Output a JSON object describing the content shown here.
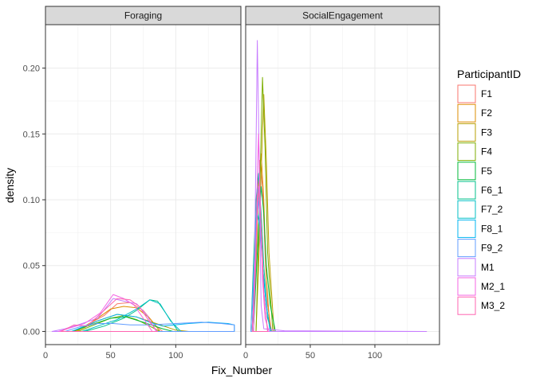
{
  "chart_data": {
    "type": "area",
    "xlabel": "Fix_Number",
    "ylabel": "density",
    "xlim": [
      0,
      150
    ],
    "ylim": [
      -0.01,
      0.233
    ],
    "x_ticks": [
      0,
      50,
      100
    ],
    "y_ticks": [
      0.0,
      0.05,
      0.1,
      0.15,
      0.2
    ],
    "y_tick_labels": [
      "0.00",
      "0.05",
      "0.10",
      "0.15",
      "0.20"
    ],
    "grid": true,
    "legend": {
      "title": "ParticipantID",
      "position": "right"
    },
    "panels": [
      {
        "name": "Foraging",
        "series": [
          {
            "name": "F1",
            "color": "#F8766D",
            "points": [
              [
                21,
                0
              ],
              [
                30,
                0.004
              ],
              [
                45,
                0.012
              ],
              [
                55,
                0.021
              ],
              [
                65,
                0.022
              ],
              [
                75,
                0.016
              ],
              [
                85,
                0.004
              ],
              [
                90,
                0
              ]
            ]
          },
          {
            "name": "F2",
            "color": "#DE8C00",
            "points": [
              [
                24,
                0
              ],
              [
                32,
                0.005
              ],
              [
                40,
                0.01
              ],
              [
                50,
                0.017
              ],
              [
                60,
                0.019
              ],
              [
                70,
                0.018
              ],
              [
                80,
                0.01
              ],
              [
                88,
                0
              ]
            ]
          },
          {
            "name": "F3",
            "color": "#B79F00",
            "points": [
              [
                22,
                0
              ],
              [
                30,
                0.003
              ],
              [
                40,
                0.008
              ],
              [
                55,
                0.013
              ],
              [
                70,
                0.011
              ],
              [
                85,
                0.006
              ],
              [
                100,
                0.001
              ],
              [
                110,
                0
              ]
            ]
          },
          {
            "name": "F4",
            "color": "#7CAE00",
            "points": [
              [
                25,
                0
              ],
              [
                35,
                0.004
              ],
              [
                50,
                0.01
              ],
              [
                60,
                0.012
              ],
              [
                70,
                0.009
              ],
              [
                80,
                0.004
              ],
              [
                88,
                0
              ]
            ]
          },
          {
            "name": "F5",
            "color": "#00BA38",
            "points": [
              [
                20,
                0
              ],
              [
                35,
                0.005
              ],
              [
                50,
                0.01
              ],
              [
                62,
                0.011
              ],
              [
                75,
                0.007
              ],
              [
                90,
                0.002
              ],
              [
                98,
                0
              ]
            ]
          },
          {
            "name": "F6_1",
            "color": "#00C08B",
            "points": [
              [
                30,
                0
              ],
              [
                45,
                0.004
              ],
              [
                60,
                0.01
              ],
              [
                70,
                0.016
              ],
              [
                80,
                0.024
              ],
              [
                86,
                0.023
              ],
              [
                95,
                0.01
              ],
              [
                102,
                0
              ]
            ]
          },
          {
            "name": "F7_2",
            "color": "#00BFC4",
            "points": [
              [
                28,
                0
              ],
              [
                40,
                0.004
              ],
              [
                55,
                0.009
              ],
              [
                70,
                0.017
              ],
              [
                80,
                0.024
              ],
              [
                88,
                0.021
              ],
              [
                96,
                0.008
              ],
              [
                104,
                0
              ]
            ]
          },
          {
            "name": "F8_1",
            "color": "#00B4F0",
            "points": [
              [
                20,
                0
              ],
              [
                40,
                0.008
              ],
              [
                55,
                0.013
              ],
              [
                70,
                0.011
              ],
              [
                80,
                0.007
              ],
              [
                90,
                0.004
              ],
              [
                110,
                0.006
              ],
              [
                125,
                0.007
              ],
              [
                140,
                0.006
              ],
              [
                145,
                0.005
              ]
            ]
          },
          {
            "name": "F9_2",
            "color": "#619CFF",
            "points": [
              [
                15,
                0
              ],
              [
                28,
                0.004
              ],
              [
                40,
                0.006
              ],
              [
                52,
                0.006
              ],
              [
                65,
                0.005
              ],
              [
                80,
                0.005
              ],
              [
                100,
                0.006
              ],
              [
                120,
                0.007
              ],
              [
                135,
                0.006
              ],
              [
                145,
                0.005
              ]
            ]
          },
          {
            "name": "M1",
            "color": "#C77CFF",
            "points": [
              [
                5,
                0
              ],
              [
                15,
                0.002
              ],
              [
                25,
                0.005
              ],
              [
                40,
                0.01
              ],
              [
                52,
                0.025
              ],
              [
                60,
                0.023
              ],
              [
                70,
                0.021
              ],
              [
                78,
                0.012
              ],
              [
                85,
                0
              ]
            ]
          },
          {
            "name": "M2_1",
            "color": "#F564E3",
            "points": [
              [
                10,
                0
              ],
              [
                20,
                0.003
              ],
              [
                30,
                0.006
              ],
              [
                42,
                0.014
              ],
              [
                52,
                0.028
              ],
              [
                60,
                0.025
              ],
              [
                68,
                0.02
              ],
              [
                75,
                0.01
              ],
              [
                82,
                0
              ]
            ]
          },
          {
            "name": "M3_2",
            "color": "#FF64B0",
            "points": [
              [
                12,
                0
              ],
              [
                22,
                0.005
              ],
              [
                32,
                0.004
              ],
              [
                45,
                0.016
              ],
              [
                55,
                0.025
              ],
              [
                65,
                0.024
              ],
              [
                72,
                0.019
              ],
              [
                80,
                0.007
              ],
              [
                86,
                0
              ]
            ]
          }
        ]
      },
      {
        "name": "SocialEngagement",
        "series": [
          {
            "name": "F1",
            "color": "#F8766D",
            "points": [
              [
                5,
                0
              ],
              [
                7,
                0.04
              ],
              [
                9,
                0.1
              ],
              [
                11,
                0.13
              ],
              [
                13,
                0.11
              ],
              [
                15,
                0.06
              ],
              [
                17,
                0.02
              ],
              [
                20,
                0
              ]
            ]
          },
          {
            "name": "F2",
            "color": "#DE8C00",
            "points": [
              [
                6,
                0
              ],
              [
                8,
                0.05
              ],
              [
                10,
                0.11
              ],
              [
                12,
                0.135
              ],
              [
                14,
                0.1
              ],
              [
                16,
                0.04
              ],
              [
                19,
                0
              ]
            ]
          },
          {
            "name": "F3",
            "color": "#B79F00",
            "points": [
              [
                8,
                0
              ],
              [
                10,
                0.05
              ],
              [
                12,
                0.12
              ],
              [
                14,
                0.18
              ],
              [
                16,
                0.13
              ],
              [
                18,
                0.06
              ],
              [
                22,
                0
              ]
            ]
          },
          {
            "name": "F4",
            "color": "#7CAE00",
            "points": [
              [
                8,
                0
              ],
              [
                10,
                0.07
              ],
              [
                12,
                0.15
              ],
              [
                13,
                0.193
              ],
              [
                15,
                0.14
              ],
              [
                17,
                0.06
              ],
              [
                21,
                0
              ]
            ]
          },
          {
            "name": "F5",
            "color": "#00BA38",
            "points": [
              [
                6,
                0
              ],
              [
                8,
                0.04
              ],
              [
                10,
                0.08
              ],
              [
                12,
                0.11
              ],
              [
                14,
                0.09
              ],
              [
                16,
                0.05
              ],
              [
                19,
                0.02
              ],
              [
                23,
                0
              ]
            ]
          },
          {
            "name": "F6_1",
            "color": "#00C08B",
            "points": [
              [
                4,
                0
              ],
              [
                6,
                0.05
              ],
              [
                8,
                0.1
              ],
              [
                10,
                0.12
              ],
              [
                12,
                0.09
              ],
              [
                14,
                0.05
              ],
              [
                17,
                0.01
              ],
              [
                20,
                0
              ]
            ]
          },
          {
            "name": "F7_2",
            "color": "#00BFC4",
            "points": [
              [
                5,
                0
              ],
              [
                7,
                0.06
              ],
              [
                9,
                0.11
              ],
              [
                11,
                0.09
              ],
              [
                13,
                0.05
              ],
              [
                16,
                0.02
              ],
              [
                19,
                0
              ]
            ]
          },
          {
            "name": "F8_1",
            "color": "#00B4F0",
            "points": [
              [
                5,
                0
              ],
              [
                7,
                0.05
              ],
              [
                9,
                0.09
              ],
              [
                11,
                0.08
              ],
              [
                13,
                0.05
              ],
              [
                16,
                0.02
              ],
              [
                19,
                0
              ]
            ]
          },
          {
            "name": "F9_2",
            "color": "#619CFF",
            "points": [
              [
                4,
                0
              ],
              [
                6,
                0.04
              ],
              [
                8,
                0.08
              ],
              [
                10,
                0.1
              ],
              [
                12,
                0.07
              ],
              [
                14,
                0.03
              ],
              [
                17,
                0
              ]
            ]
          },
          {
            "name": "M1",
            "color": "#C77CFF",
            "points": [
              [
                6,
                0
              ],
              [
                7,
                0.06
              ],
              [
                8,
                0.14
              ],
              [
                9,
                0.221
              ],
              [
                10,
                0.16
              ],
              [
                11,
                0.08
              ],
              [
                12,
                0.02
              ],
              [
                14,
                0.002
              ],
              [
                30,
                0.0005
              ],
              [
                140,
                0
              ]
            ]
          },
          {
            "name": "M2_1",
            "color": "#F564E3",
            "points": [
              [
                6,
                0
              ],
              [
                8,
                0.06
              ],
              [
                9,
                0.12
              ],
              [
                10,
                0.15
              ],
              [
                11,
                0.11
              ],
              [
                13,
                0.04
              ],
              [
                15,
                0.01
              ],
              [
                18,
                0
              ]
            ]
          },
          {
            "name": "M3_2",
            "color": "#FF64B0",
            "points": [
              [
                5,
                0
              ],
              [
                7,
                0.04
              ],
              [
                9,
                0.09
              ],
              [
                10,
                0.11
              ],
              [
                12,
                0.08
              ],
              [
                14,
                0.03
              ],
              [
                17,
                0
              ]
            ]
          }
        ]
      }
    ]
  }
}
